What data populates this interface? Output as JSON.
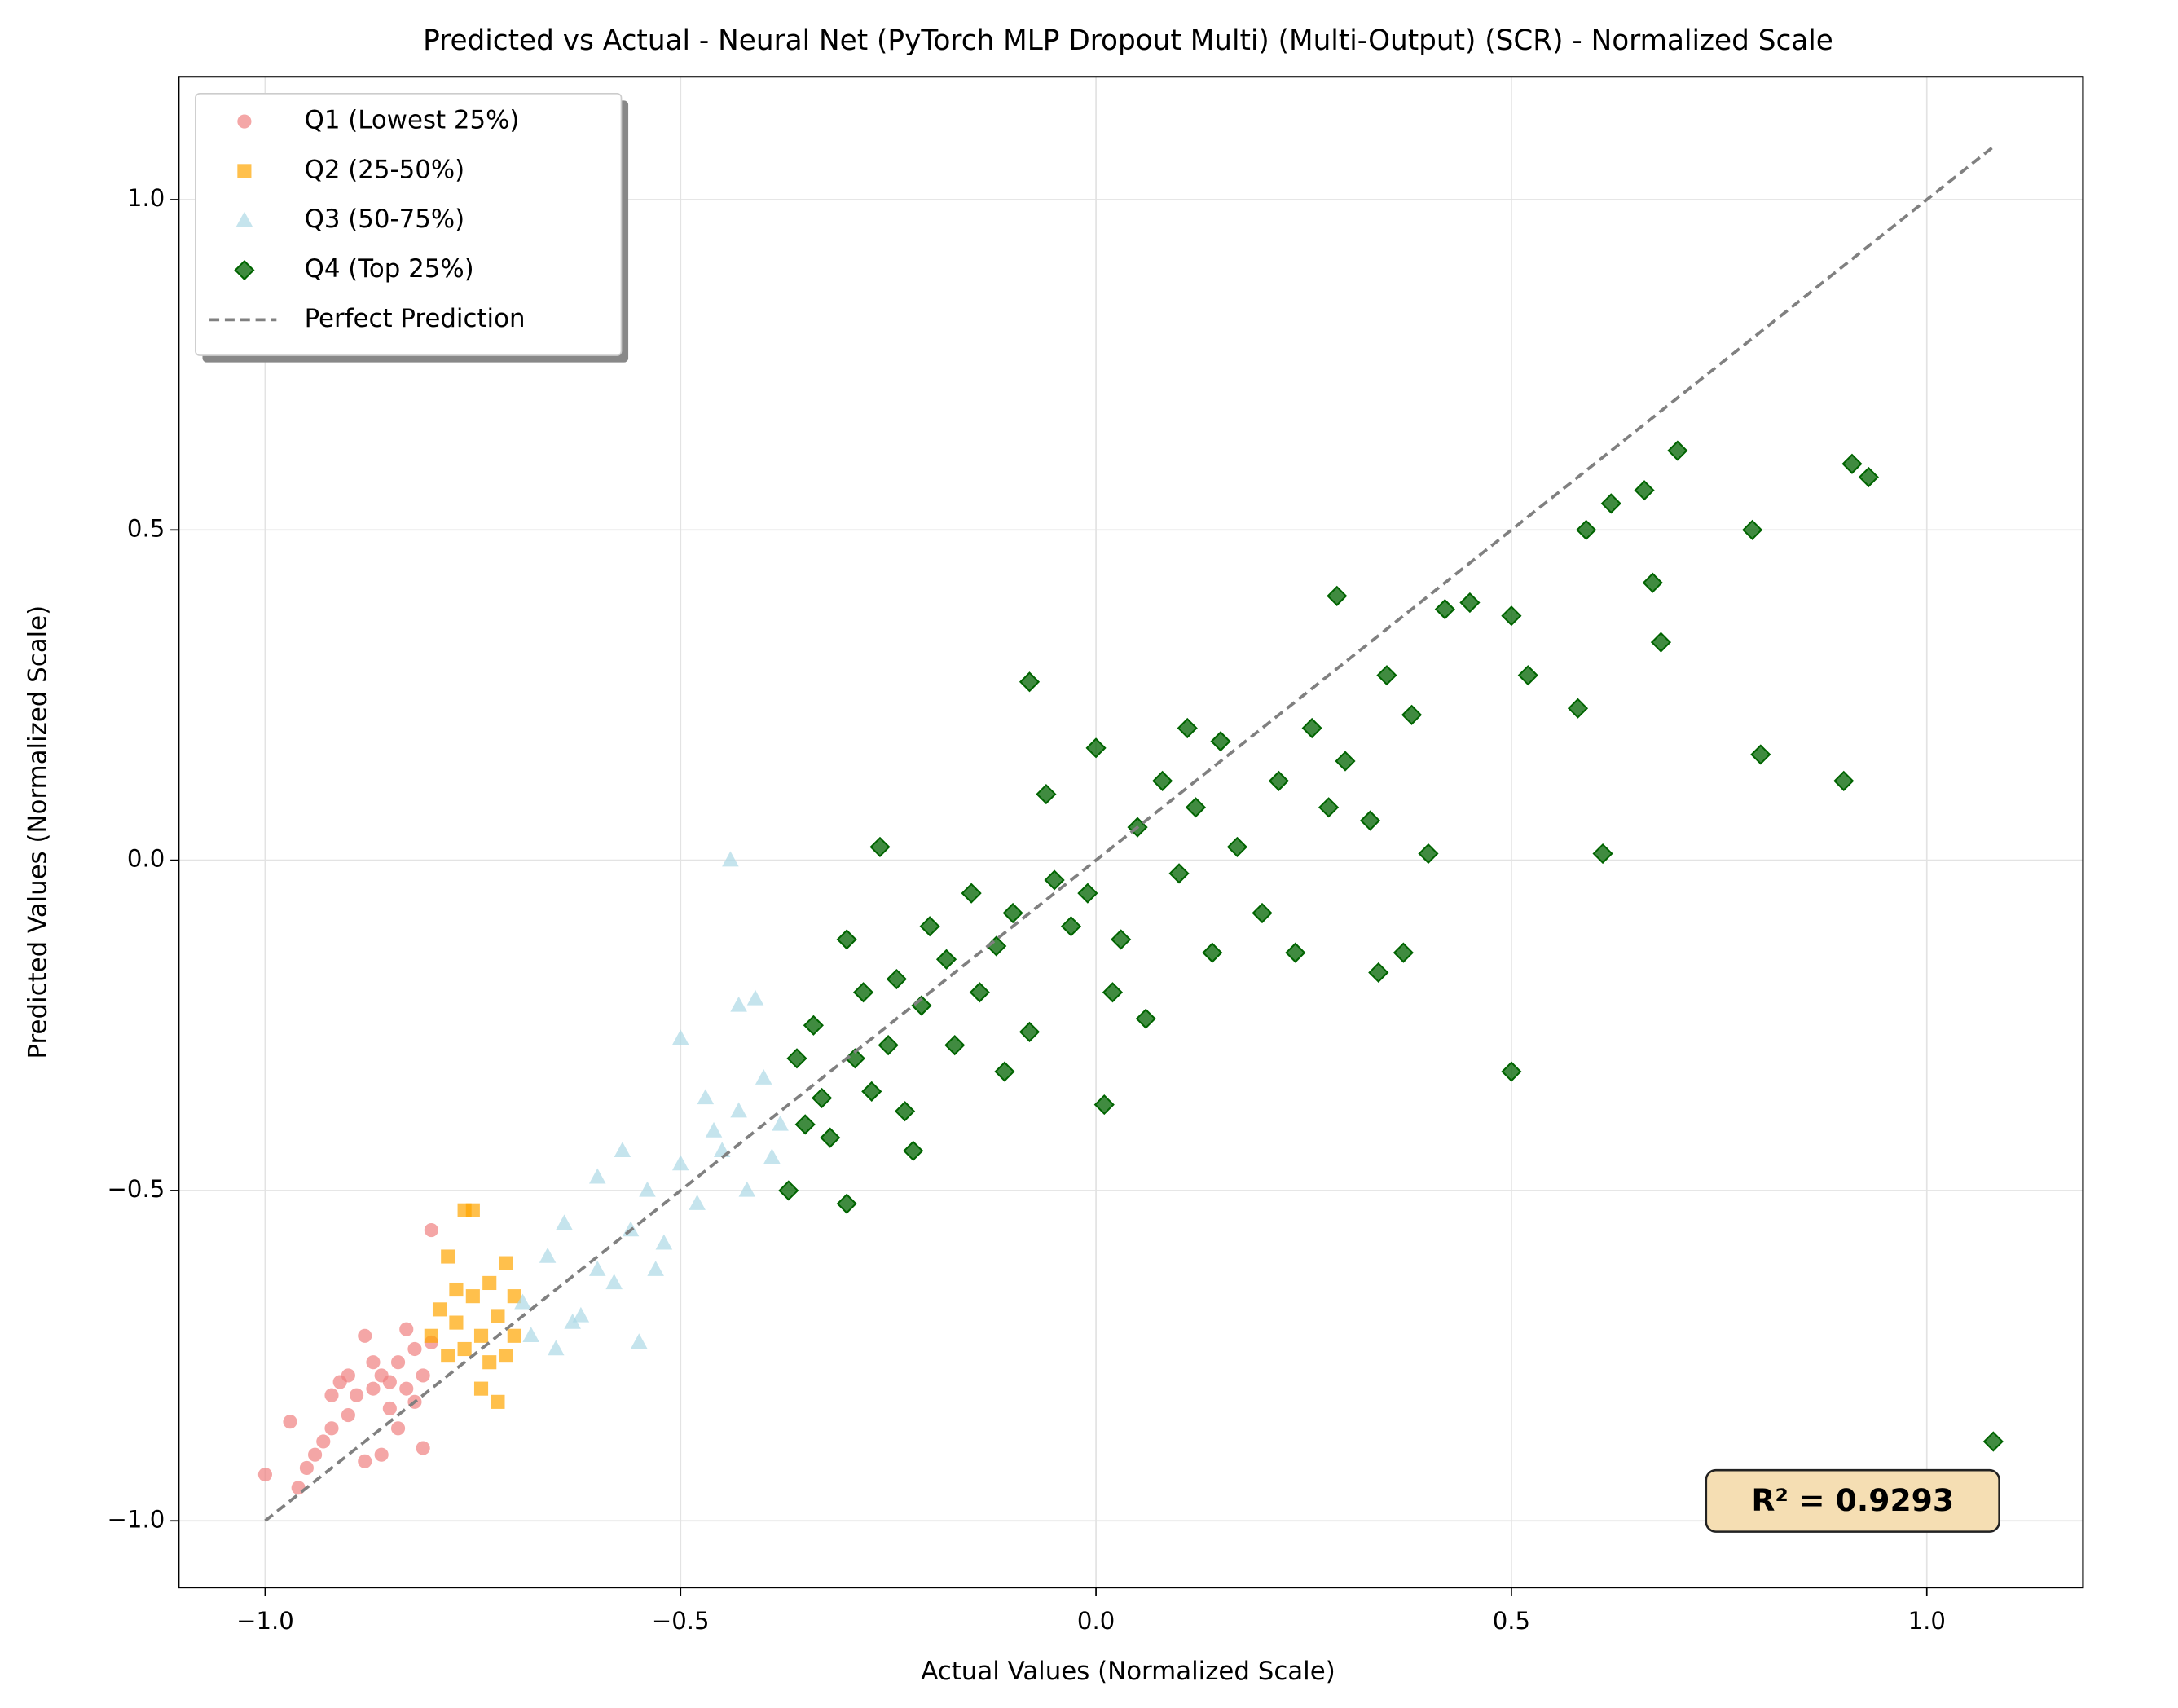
{
  "chart_data": {
    "type": "scatter",
    "title": "Predicted vs Actual - Neural Net (PyTorch MLP Dropout Multi) (Multi-Output) (SCR) - Normalized Scale",
    "x_label": "Actual Values (Normalized Scale)",
    "y_label": "Predicted Values (Normalized Scale)",
    "xlim": [
      -1.104,
      1.188
    ],
    "ylim": [
      -1.101,
      1.186
    ],
    "xticks": [
      {
        "value": -1.0,
        "label": "−1.0"
      },
      {
        "value": -0.5,
        "label": "−0.5"
      },
      {
        "value": 0,
        "label": "0.0"
      },
      0.5,
      {
        "value": 1.0,
        "label": "1.0"
      }
    ],
    "yticks": [
      {
        "value": -1.0,
        "label": "−1.0"
      },
      {
        "value": -0.5,
        "label": "−0.5"
      },
      {
        "value": 0,
        "label": "0.0"
      },
      0.5,
      {
        "value": 1.0,
        "label": "1.0"
      }
    ],
    "grid": true,
    "legend_position": "upper-left",
    "series": [
      {
        "name": "Q1 (Lowest 25%)",
        "color": "#f08080",
        "marker": "circle",
        "x": [
          -1.0,
          -0.97,
          -0.96,
          -0.95,
          -0.94,
          -0.93,
          -0.92,
          -0.91,
          -0.9,
          -0.89,
          -0.88,
          -0.88,
          -0.87,
          -0.86,
          -0.85,
          -0.84,
          -0.83,
          -0.82,
          -0.81,
          -0.81,
          -0.8,
          -0.8,
          -0.86,
          -0.92,
          -0.84,
          -0.82,
          -0.87,
          -0.83,
          -0.9,
          -0.85
        ],
        "y": [
          -0.93,
          -0.85,
          -0.95,
          -0.92,
          -0.9,
          -0.88,
          -0.86,
          -0.79,
          -0.84,
          -0.81,
          -0.91,
          -0.72,
          -0.8,
          -0.78,
          -0.83,
          -0.76,
          -0.8,
          -0.74,
          -0.89,
          -0.78,
          -0.56,
          -0.73,
          -0.9,
          -0.81,
          -0.86,
          -0.82,
          -0.76,
          -0.71,
          -0.78,
          -0.79
        ]
      },
      {
        "name": "Q2 (25-50%)",
        "color": "#ffa500",
        "marker": "square",
        "x": [
          -0.8,
          -0.79,
          -0.78,
          -0.78,
          -0.77,
          -0.76,
          -0.75,
          -0.75,
          -0.74,
          -0.74,
          -0.73,
          -0.72,
          -0.72,
          -0.71,
          -0.71,
          -0.7,
          -0.7,
          -0.76,
          -0.73,
          -0.77
        ],
        "y": [
          -0.72,
          -0.68,
          -0.75,
          -0.6,
          -0.7,
          -0.53,
          -0.53,
          -0.66,
          -0.8,
          -0.72,
          -0.64,
          -0.82,
          -0.69,
          -0.61,
          -0.75,
          -0.66,
          -0.72,
          -0.74,
          -0.76,
          -0.65
        ]
      },
      {
        "name": "Q3 (50-75%)",
        "color": "#add8e6",
        "marker": "triangle",
        "x": [
          -0.69,
          -0.68,
          -0.66,
          -0.65,
          -0.64,
          -0.62,
          -0.6,
          -0.6,
          -0.58,
          -0.56,
          -0.55,
          -0.54,
          -0.52,
          -0.5,
          -0.5,
          -0.48,
          -0.47,
          -0.45,
          -0.44,
          -0.43,
          -0.42,
          -0.4,
          -0.39,
          -0.43,
          -0.41,
          -0.38,
          -0.57,
          -0.63,
          -0.53,
          -0.46
        ],
        "y": [
          -0.67,
          -0.72,
          -0.6,
          -0.74,
          -0.55,
          -0.69,
          -0.62,
          -0.48,
          -0.64,
          -0.56,
          -0.73,
          -0.5,
          -0.58,
          -0.27,
          -0.46,
          -0.52,
          -0.36,
          -0.44,
          0.0,
          -0.38,
          -0.5,
          -0.33,
          -0.45,
          -0.22,
          -0.21,
          -0.4,
          -0.44,
          -0.7,
          -0.62,
          -0.41
        ]
      },
      {
        "name": "Q4 (Top 25%)",
        "color": "#006400",
        "marker": "diamond",
        "x": [
          -0.37,
          -0.36,
          -0.35,
          -0.34,
          -0.33,
          -0.32,
          -0.3,
          -0.3,
          -0.29,
          -0.28,
          -0.27,
          -0.26,
          -0.25,
          -0.24,
          -0.23,
          -0.22,
          -0.21,
          -0.2,
          -0.18,
          -0.17,
          -0.15,
          -0.14,
          -0.12,
          -0.11,
          -0.1,
          -0.08,
          -0.08,
          -0.06,
          -0.05,
          -0.03,
          -0.01,
          0.0,
          0.01,
          0.02,
          0.03,
          0.05,
          0.06,
          0.08,
          0.1,
          0.11,
          0.12,
          0.14,
          0.15,
          0.17,
          0.2,
          0.22,
          0.24,
          0.26,
          0.28,
          0.29,
          0.3,
          0.33,
          0.34,
          0.35,
          0.37,
          0.38,
          0.4,
          0.42,
          0.45,
          0.5,
          0.5,
          0.52,
          0.58,
          0.59,
          0.61,
          0.62,
          0.66,
          0.67,
          0.68,
          0.7,
          0.79,
          0.8,
          0.9,
          0.91,
          0.93,
          1.08
        ],
        "y": [
          -0.5,
          -0.3,
          -0.4,
          -0.25,
          -0.36,
          -0.42,
          -0.52,
          -0.12,
          -0.3,
          -0.2,
          -0.35,
          0.02,
          -0.28,
          -0.18,
          -0.38,
          -0.44,
          -0.22,
          -0.1,
          -0.15,
          -0.28,
          -0.05,
          -0.2,
          -0.13,
          -0.32,
          -0.08,
          0.27,
          -0.26,
          0.1,
          -0.03,
          -0.1,
          -0.05,
          0.17,
          -0.37,
          -0.2,
          -0.12,
          0.05,
          -0.24,
          0.12,
          -0.02,
          0.2,
          0.08,
          -0.14,
          0.18,
          0.02,
          -0.08,
          0.12,
          -0.14,
          0.2,
          0.08,
          0.4,
          0.15,
          0.06,
          -0.17,
          0.28,
          -0.14,
          0.22,
          0.01,
          0.38,
          0.39,
          -0.32,
          0.37,
          0.28,
          0.23,
          0.5,
          0.01,
          0.54,
          0.56,
          0.42,
          0.33,
          0.62,
          0.5,
          0.16,
          0.12,
          0.6,
          0.58,
          -0.88
        ]
      }
    ],
    "reference_line": {
      "name": "Perfect Prediction",
      "color": "#808080",
      "x": [
        -1.0,
        1.08
      ],
      "y": [
        -1.0,
        1.08
      ]
    },
    "annotation": "R² = 0.9293"
  }
}
